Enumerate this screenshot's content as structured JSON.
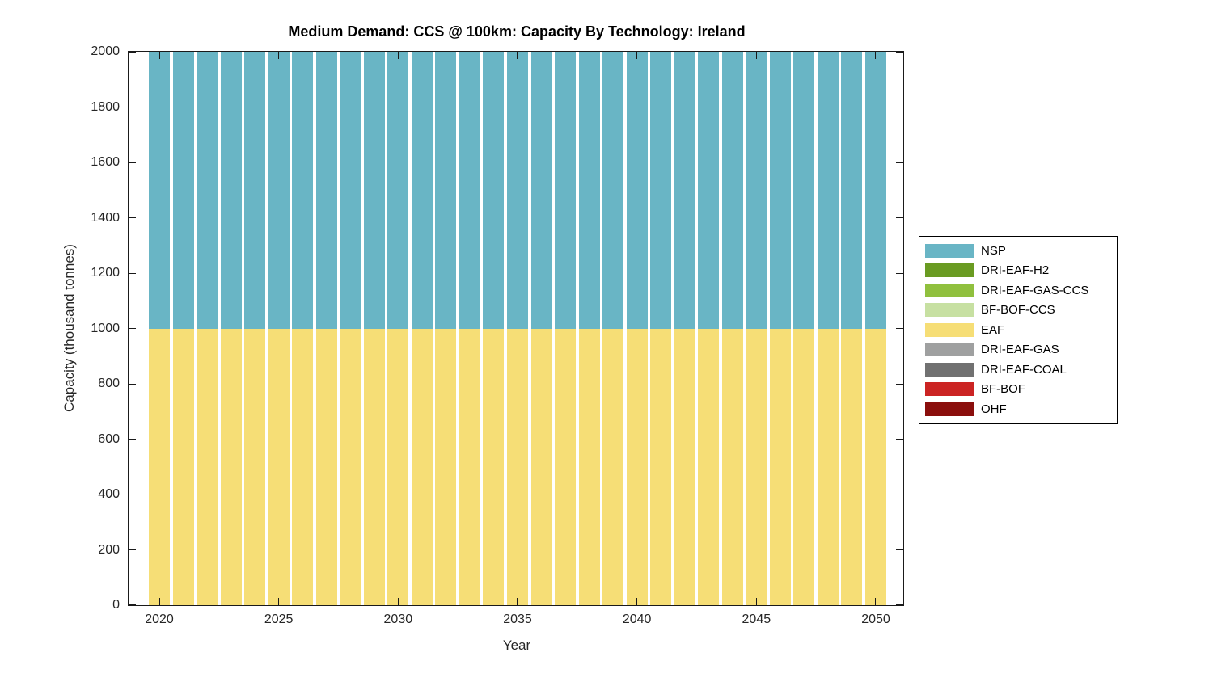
{
  "page": {
    "background": "#ffffff"
  },
  "chart_data": {
    "type": "bar",
    "stacked": true,
    "title": "Medium Demand: CCS @ 100km: Capacity By Technology: Ireland",
    "xlabel": "Year",
    "ylabel": "Capacity (thousand tonnes)",
    "x": [
      2020,
      2021,
      2022,
      2023,
      2024,
      2025,
      2026,
      2027,
      2028,
      2029,
      2030,
      2031,
      2032,
      2033,
      2034,
      2035,
      2036,
      2037,
      2038,
      2039,
      2040,
      2041,
      2042,
      2043,
      2044,
      2045,
      2046,
      2047,
      2048,
      2049,
      2050
    ],
    "series": [
      {
        "name": "EAF",
        "color": "#F6DE76",
        "stack_order": "bottom",
        "values": [
          1000,
          1000,
          1000,
          1000,
          1000,
          1000,
          1000,
          1000,
          1000,
          1000,
          1000,
          1000,
          1000,
          1000,
          1000,
          1000,
          1000,
          1000,
          1000,
          1000,
          1000,
          1000,
          1000,
          1000,
          1000,
          1000,
          1000,
          1000,
          1000,
          1000,
          1000
        ]
      },
      {
        "name": "NSP",
        "color": "#69B5C5",
        "stack_order": "top",
        "values": [
          1000,
          1000,
          1000,
          1000,
          1000,
          1000,
          1000,
          1000,
          1000,
          1000,
          1000,
          1000,
          1000,
          1000,
          1000,
          1000,
          1000,
          1000,
          1000,
          1000,
          1000,
          1000,
          1000,
          1000,
          1000,
          1000,
          1000,
          1000,
          1000,
          1000,
          1000
        ]
      },
      {
        "name": "DRI-EAF-H2",
        "color": "#6A9B22",
        "values": [
          0,
          0,
          0,
          0,
          0,
          0,
          0,
          0,
          0,
          0,
          0,
          0,
          0,
          0,
          0,
          0,
          0,
          0,
          0,
          0,
          0,
          0,
          0,
          0,
          0,
          0,
          0,
          0,
          0,
          0,
          0
        ]
      },
      {
        "name": "DRI-EAF-GAS-CCS",
        "color": "#90C03E",
        "values": [
          0,
          0,
          0,
          0,
          0,
          0,
          0,
          0,
          0,
          0,
          0,
          0,
          0,
          0,
          0,
          0,
          0,
          0,
          0,
          0,
          0,
          0,
          0,
          0,
          0,
          0,
          0,
          0,
          0,
          0,
          0
        ]
      },
      {
        "name": "BF-BOF-CCS",
        "color": "#C7E0A2",
        "values": [
          0,
          0,
          0,
          0,
          0,
          0,
          0,
          0,
          0,
          0,
          0,
          0,
          0,
          0,
          0,
          0,
          0,
          0,
          0,
          0,
          0,
          0,
          0,
          0,
          0,
          0,
          0,
          0,
          0,
          0,
          0
        ]
      },
      {
        "name": "DRI-EAF-GAS",
        "color": "#9FA0A0",
        "values": [
          0,
          0,
          0,
          0,
          0,
          0,
          0,
          0,
          0,
          0,
          0,
          0,
          0,
          0,
          0,
          0,
          0,
          0,
          0,
          0,
          0,
          0,
          0,
          0,
          0,
          0,
          0,
          0,
          0,
          0,
          0
        ]
      },
      {
        "name": "DRI-EAF-COAL",
        "color": "#717171",
        "values": [
          0,
          0,
          0,
          0,
          0,
          0,
          0,
          0,
          0,
          0,
          0,
          0,
          0,
          0,
          0,
          0,
          0,
          0,
          0,
          0,
          0,
          0,
          0,
          0,
          0,
          0,
          0,
          0,
          0,
          0,
          0
        ]
      },
      {
        "name": "BF-BOF",
        "color": "#CB2423",
        "values": [
          0,
          0,
          0,
          0,
          0,
          0,
          0,
          0,
          0,
          0,
          0,
          0,
          0,
          0,
          0,
          0,
          0,
          0,
          0,
          0,
          0,
          0,
          0,
          0,
          0,
          0,
          0,
          0,
          0,
          0,
          0
        ]
      },
      {
        "name": "OHF",
        "color": "#8A0E0C",
        "values": [
          0,
          0,
          0,
          0,
          0,
          0,
          0,
          0,
          0,
          0,
          0,
          0,
          0,
          0,
          0,
          0,
          0,
          0,
          0,
          0,
          0,
          0,
          0,
          0,
          0,
          0,
          0,
          0,
          0,
          0,
          0
        ]
      }
    ],
    "ylim": [
      0,
      2000
    ],
    "yticks": [
      0,
      200,
      400,
      600,
      800,
      1000,
      1200,
      1400,
      1600,
      1800,
      2000
    ],
    "xticks": [
      2020,
      2025,
      2030,
      2035,
      2040,
      2045,
      2050
    ],
    "grid": false,
    "legend": {
      "position": "right-outside",
      "entries": [
        {
          "label": "NSP",
          "color": "#69B5C5"
        },
        {
          "label": "DRI-EAF-H2",
          "color": "#6A9B22"
        },
        {
          "label": "DRI-EAF-GAS-CCS",
          "color": "#90C03E"
        },
        {
          "label": "BF-BOF-CCS",
          "color": "#C7E0A2"
        },
        {
          "label": "EAF",
          "color": "#F6DE76"
        },
        {
          "label": "DRI-EAF-GAS",
          "color": "#9FA0A0"
        },
        {
          "label": "DRI-EAF-COAL",
          "color": "#717171"
        },
        {
          "label": "BF-BOF",
          "color": "#CB2423"
        },
        {
          "label": "OHF",
          "color": "#8A0E0C"
        }
      ]
    }
  }
}
